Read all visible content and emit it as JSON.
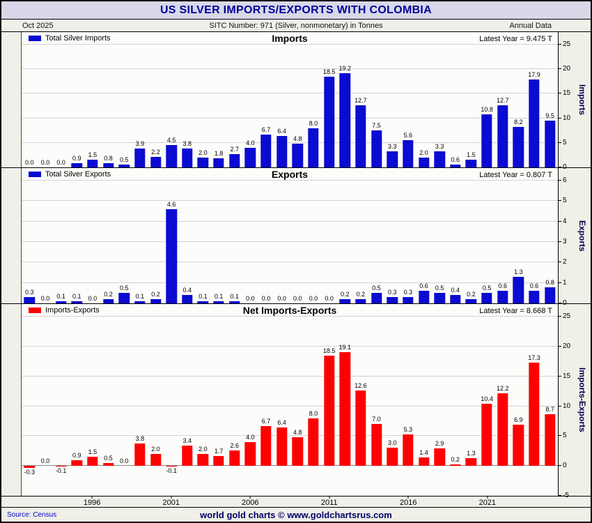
{
  "header": {
    "title": "US SILVER IMPORTS/EXPORTS WITH COLOMBIA",
    "date_label": "Oct  2025",
    "subtitle": "SITC Number: 971 (Silver, nonmonetary) in Tonnes",
    "period_label": "Annual Data"
  },
  "colors": {
    "title_text": "#000099",
    "title_band": "#d8d8e8",
    "imports_bar": "#0b0bd1",
    "exports_bar": "#0b0bd1",
    "net_bar": "#ff0000"
  },
  "x_axis": {
    "start_year": 1992,
    "end_year": 2025,
    "tick_years": [
      1996,
      2001,
      2006,
      2011,
      2016,
      2021
    ]
  },
  "chart_data": [
    {
      "type": "bar",
      "title": "Imports",
      "legend": "Total Silver Imports",
      "latest_label": "Latest Year = 9.475 T",
      "ylabel": "Imports",
      "color": "#0b0bd1",
      "ylim": [
        0,
        25
      ],
      "yticks": [
        0,
        5,
        10,
        15,
        20,
        25
      ],
      "x_range": [
        1992,
        2025
      ],
      "values": [
        0.0,
        0.0,
        0.0,
        0.9,
        1.5,
        0.8,
        0.5,
        3.9,
        2.2,
        4.5,
        3.8,
        2.0,
        1.8,
        2.7,
        4.0,
        6.7,
        6.4,
        4.8,
        8.0,
        18.5,
        19.2,
        12.7,
        7.5,
        3.3,
        5.6,
        2.0,
        3.3,
        0.6,
        1.5,
        10.8,
        12.7,
        8.2,
        17.9,
        9.5
      ]
    },
    {
      "type": "bar",
      "title": "Exports",
      "legend": "Total Silver Exports",
      "latest_label": "Latest Year = 0.807 T",
      "ylabel": "Exports",
      "color": "#0b0bd1",
      "ylim": [
        0,
        6
      ],
      "yticks": [
        0,
        1,
        2,
        3,
        4,
        5,
        6
      ],
      "x_range": [
        1992,
        2025
      ],
      "values": [
        0.3,
        0.0,
        0.1,
        0.1,
        0.0,
        0.2,
        0.5,
        0.1,
        0.2,
        4.6,
        0.4,
        0.1,
        0.1,
        0.1,
        0.0,
        0.0,
        0.0,
        0.0,
        0.0,
        0.0,
        0.2,
        0.2,
        0.5,
        0.3,
        0.3,
        0.6,
        0.5,
        0.4,
        0.2,
        0.5,
        0.6,
        1.3,
        0.6,
        0.8
      ]
    },
    {
      "type": "bar",
      "title": "Net Imports-Exports",
      "legend": "Imports-Exports",
      "latest_label": "Latest Year = 8.668 T",
      "ylabel": "Imports-Exports",
      "color": "#ff0000",
      "ylim": [
        -5,
        25
      ],
      "yticks": [
        -5,
        0,
        5,
        10,
        15,
        20,
        25
      ],
      "x_range": [
        1992,
        2025
      ],
      "values": [
        -0.3,
        0.0,
        -0.1,
        0.9,
        1.5,
        0.5,
        0.0,
        3.8,
        2.0,
        -0.1,
        3.4,
        2.0,
        1.7,
        2.6,
        4.0,
        6.7,
        6.4,
        4.8,
        8.0,
        18.5,
        19.1,
        12.6,
        7.0,
        3.0,
        5.3,
        1.4,
        2.9,
        0.2,
        1.3,
        10.4,
        12.2,
        6.9,
        17.3,
        8.7
      ]
    }
  ],
  "footer": {
    "source": "Source: Census",
    "branding": "world gold charts © www.goldchartsrus.com"
  }
}
